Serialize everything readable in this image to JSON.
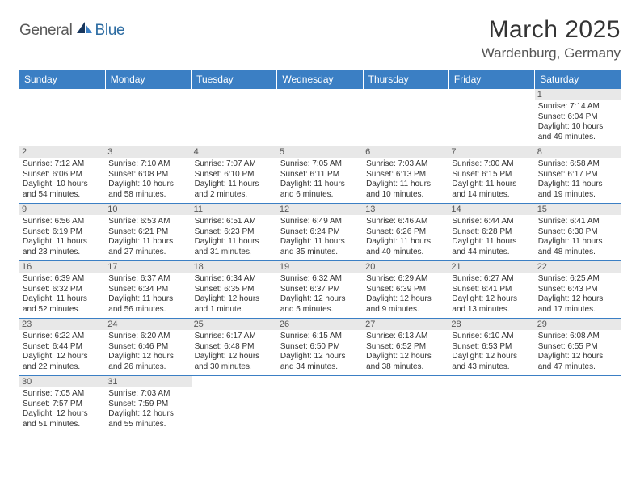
{
  "logo": {
    "general": "General",
    "blue": "Blue"
  },
  "title": "March 2025",
  "location": "Wardenburg, Germany",
  "weekdays": [
    "Sunday",
    "Monday",
    "Tuesday",
    "Wednesday",
    "Thursday",
    "Friday",
    "Saturday"
  ],
  "colors": {
    "header_bg": "#3b7fc4",
    "header_text": "#ffffff",
    "row_divider": "#3b7fc4",
    "daynum_bg": "#e8e8e8",
    "text": "#333333",
    "logo_gray": "#5a5a5a",
    "logo_blue": "#2d6ca2"
  },
  "grid": {
    "columns": 7,
    "rows": 6,
    "start_weekday_index": 6,
    "days_in_month": 31
  },
  "days": [
    {
      "n": 1,
      "sunrise": "7:14 AM",
      "sunset": "6:04 PM",
      "daylight": "10 hours and 49 minutes."
    },
    {
      "n": 2,
      "sunrise": "7:12 AM",
      "sunset": "6:06 PM",
      "daylight": "10 hours and 54 minutes."
    },
    {
      "n": 3,
      "sunrise": "7:10 AM",
      "sunset": "6:08 PM",
      "daylight": "10 hours and 58 minutes."
    },
    {
      "n": 4,
      "sunrise": "7:07 AM",
      "sunset": "6:10 PM",
      "daylight": "11 hours and 2 minutes."
    },
    {
      "n": 5,
      "sunrise": "7:05 AM",
      "sunset": "6:11 PM",
      "daylight": "11 hours and 6 minutes."
    },
    {
      "n": 6,
      "sunrise": "7:03 AM",
      "sunset": "6:13 PM",
      "daylight": "11 hours and 10 minutes."
    },
    {
      "n": 7,
      "sunrise": "7:00 AM",
      "sunset": "6:15 PM",
      "daylight": "11 hours and 14 minutes."
    },
    {
      "n": 8,
      "sunrise": "6:58 AM",
      "sunset": "6:17 PM",
      "daylight": "11 hours and 19 minutes."
    },
    {
      "n": 9,
      "sunrise": "6:56 AM",
      "sunset": "6:19 PM",
      "daylight": "11 hours and 23 minutes."
    },
    {
      "n": 10,
      "sunrise": "6:53 AM",
      "sunset": "6:21 PM",
      "daylight": "11 hours and 27 minutes."
    },
    {
      "n": 11,
      "sunrise": "6:51 AM",
      "sunset": "6:23 PM",
      "daylight": "11 hours and 31 minutes."
    },
    {
      "n": 12,
      "sunrise": "6:49 AM",
      "sunset": "6:24 PM",
      "daylight": "11 hours and 35 minutes."
    },
    {
      "n": 13,
      "sunrise": "6:46 AM",
      "sunset": "6:26 PM",
      "daylight": "11 hours and 40 minutes."
    },
    {
      "n": 14,
      "sunrise": "6:44 AM",
      "sunset": "6:28 PM",
      "daylight": "11 hours and 44 minutes."
    },
    {
      "n": 15,
      "sunrise": "6:41 AM",
      "sunset": "6:30 PM",
      "daylight": "11 hours and 48 minutes."
    },
    {
      "n": 16,
      "sunrise": "6:39 AM",
      "sunset": "6:32 PM",
      "daylight": "11 hours and 52 minutes."
    },
    {
      "n": 17,
      "sunrise": "6:37 AM",
      "sunset": "6:34 PM",
      "daylight": "11 hours and 56 minutes."
    },
    {
      "n": 18,
      "sunrise": "6:34 AM",
      "sunset": "6:35 PM",
      "daylight": "12 hours and 1 minute."
    },
    {
      "n": 19,
      "sunrise": "6:32 AM",
      "sunset": "6:37 PM",
      "daylight": "12 hours and 5 minutes."
    },
    {
      "n": 20,
      "sunrise": "6:29 AM",
      "sunset": "6:39 PM",
      "daylight": "12 hours and 9 minutes."
    },
    {
      "n": 21,
      "sunrise": "6:27 AM",
      "sunset": "6:41 PM",
      "daylight": "12 hours and 13 minutes."
    },
    {
      "n": 22,
      "sunrise": "6:25 AM",
      "sunset": "6:43 PM",
      "daylight": "12 hours and 17 minutes."
    },
    {
      "n": 23,
      "sunrise": "6:22 AM",
      "sunset": "6:44 PM",
      "daylight": "12 hours and 22 minutes."
    },
    {
      "n": 24,
      "sunrise": "6:20 AM",
      "sunset": "6:46 PM",
      "daylight": "12 hours and 26 minutes."
    },
    {
      "n": 25,
      "sunrise": "6:17 AM",
      "sunset": "6:48 PM",
      "daylight": "12 hours and 30 minutes."
    },
    {
      "n": 26,
      "sunrise": "6:15 AM",
      "sunset": "6:50 PM",
      "daylight": "12 hours and 34 minutes."
    },
    {
      "n": 27,
      "sunrise": "6:13 AM",
      "sunset": "6:52 PM",
      "daylight": "12 hours and 38 minutes."
    },
    {
      "n": 28,
      "sunrise": "6:10 AM",
      "sunset": "6:53 PM",
      "daylight": "12 hours and 43 minutes."
    },
    {
      "n": 29,
      "sunrise": "6:08 AM",
      "sunset": "6:55 PM",
      "daylight": "12 hours and 47 minutes."
    },
    {
      "n": 30,
      "sunrise": "7:05 AM",
      "sunset": "7:57 PM",
      "daylight": "12 hours and 51 minutes."
    },
    {
      "n": 31,
      "sunrise": "7:03 AM",
      "sunset": "7:59 PM",
      "daylight": "12 hours and 55 minutes."
    }
  ],
  "labels": {
    "sunrise_prefix": "Sunrise: ",
    "sunset_prefix": "Sunset: ",
    "daylight_prefix": "Daylight: "
  }
}
